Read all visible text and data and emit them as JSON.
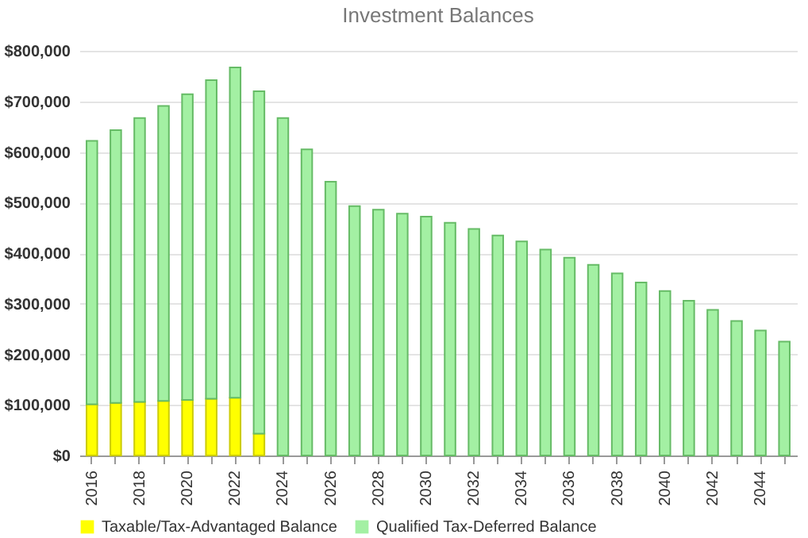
{
  "chart_data": {
    "type": "bar",
    "title": "Investment Balances",
    "stacked": true,
    "categories": [
      "2016",
      null,
      "2018",
      null,
      "2020",
      null,
      "2022",
      null,
      "2024",
      null,
      "2026",
      null,
      "2028",
      null,
      "2030",
      null,
      "2032",
      null,
      "2034",
      null,
      "2036",
      null,
      "2038",
      null,
      "2040",
      null,
      "2042",
      null,
      "2044",
      null
    ],
    "series": [
      {
        "name": "Taxable/Tax-Advantaged Balance",
        "color": "#ffff00",
        "values": [
          101000,
          104000,
          106000,
          108000,
          110000,
          112000,
          114000,
          43000,
          null,
          null,
          null,
          null,
          null,
          null,
          null,
          null,
          null,
          null,
          null,
          null,
          null,
          null,
          null,
          null,
          null,
          null,
          null,
          null,
          null,
          null
        ]
      },
      {
        "name": "Qualified Tax-Deferred Balance",
        "color": "#a3f0a3",
        "values": [
          521000,
          539000,
          561000,
          583000,
          604000,
          630000,
          653000,
          677000,
          667000,
          605000,
          541000,
          493000,
          486000,
          478000,
          472000,
          460000,
          448000,
          435000,
          423000,
          407000,
          391000,
          377000,
          360000,
          342000,
          325000,
          306000,
          288000,
          266000,
          247000,
          225000
        ]
      }
    ],
    "ylim": [
      0,
      800000
    ],
    "yticks": [
      {
        "value": 0,
        "label": "$0"
      },
      {
        "value": 100000,
        "label": "$100,000"
      },
      {
        "value": 200000,
        "label": "$200,000"
      },
      {
        "value": 300000,
        "label": "$300,000"
      },
      {
        "value": 400000,
        "label": "$400,000"
      },
      {
        "value": 500000,
        "label": "$500,000"
      },
      {
        "value": 600000,
        "label": "$600,000"
      },
      {
        "value": 700000,
        "label": "$700,000"
      },
      {
        "value": 800000,
        "label": "$800,000"
      }
    ],
    "grid": "y",
    "legend": "bottom"
  }
}
